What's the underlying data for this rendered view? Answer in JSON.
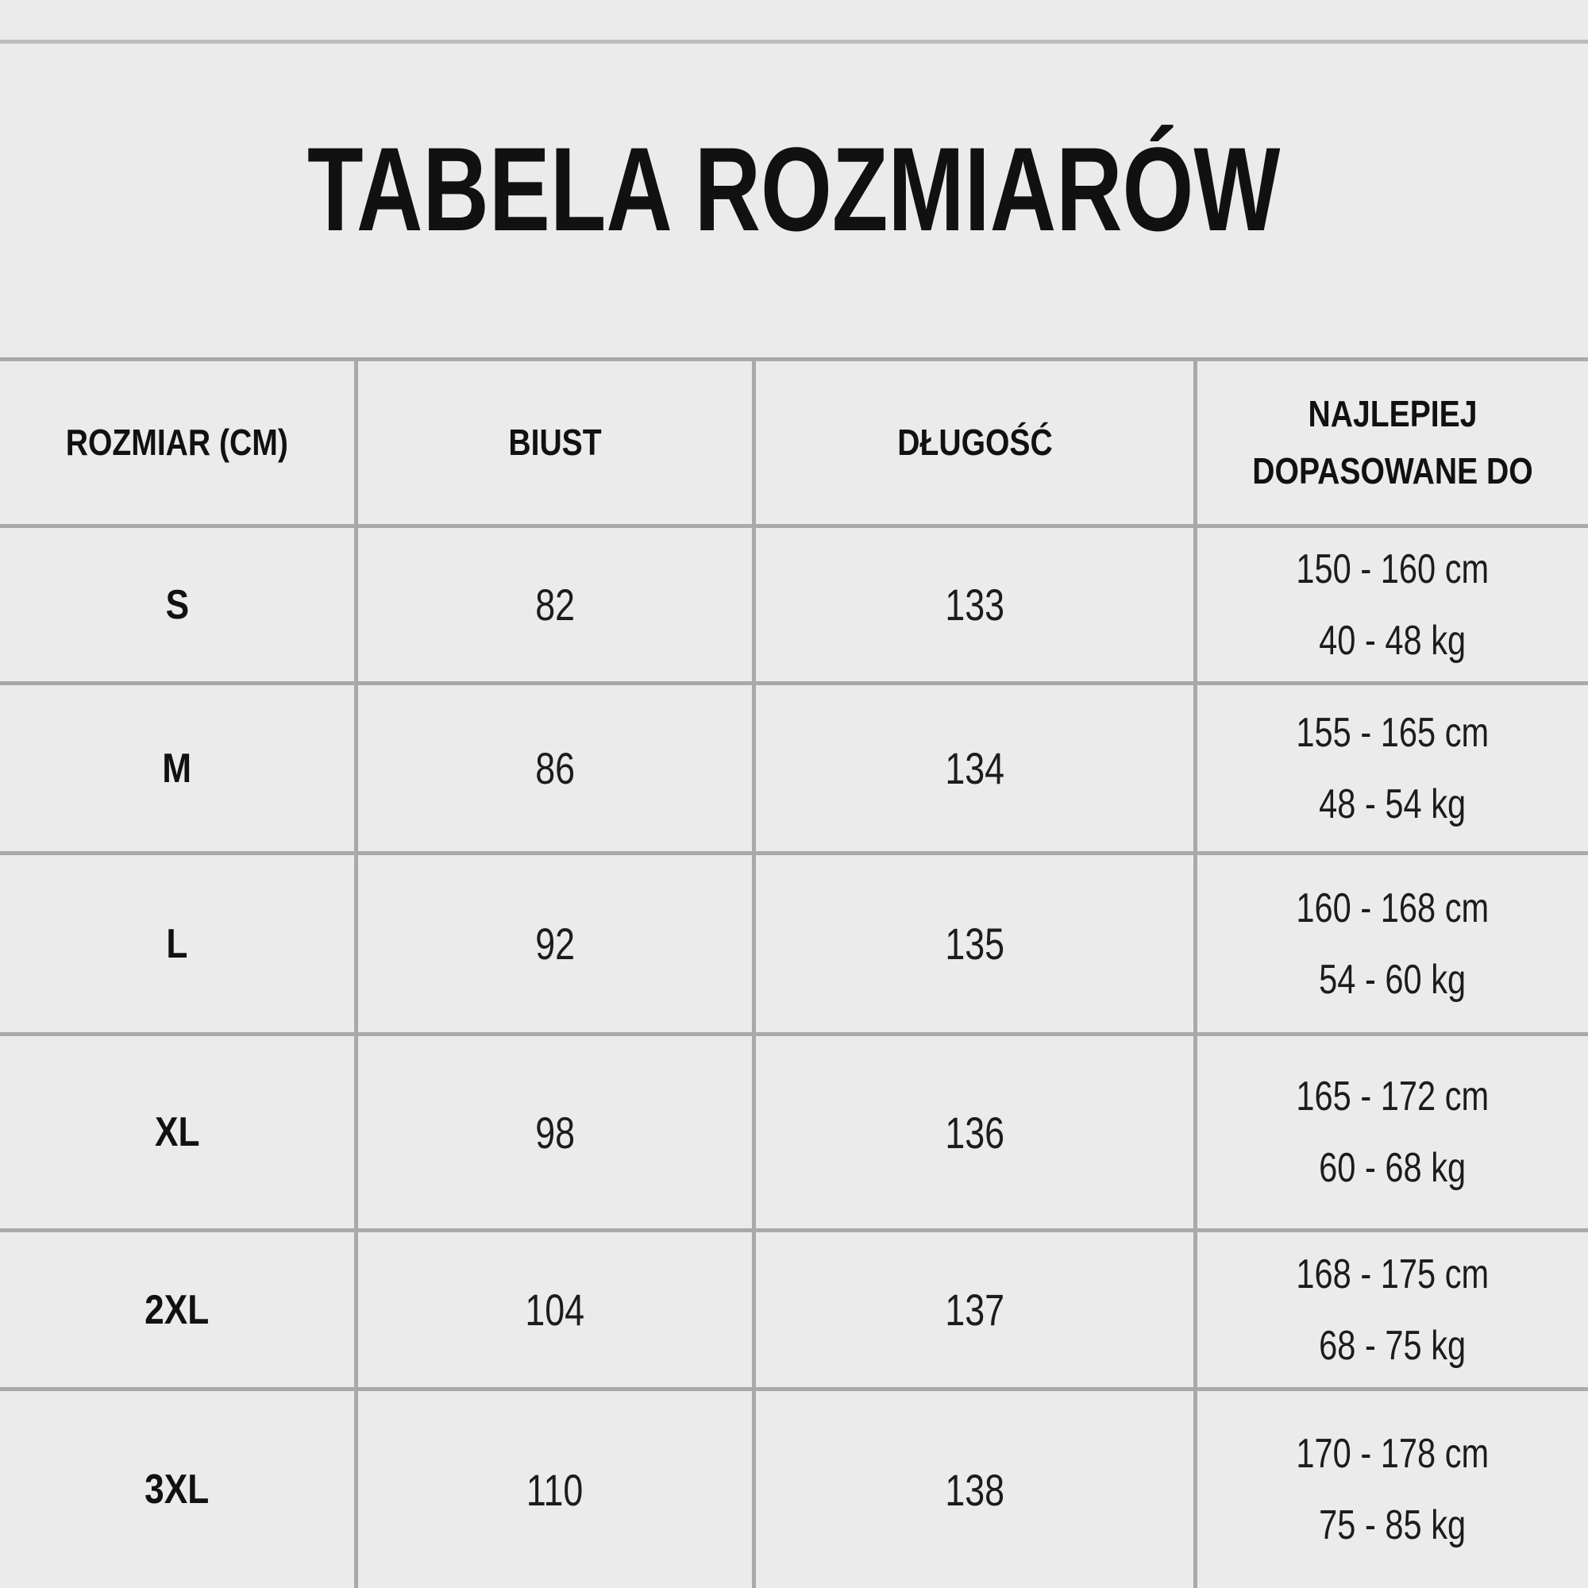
{
  "colors": {
    "background": "#ebebeb",
    "border": "#a9a9a9",
    "divider": "#bcbcbc",
    "text": "#111111"
  },
  "chart_data": {
    "type": "table",
    "title": "TABELA ROZMIARÓW",
    "columns": [
      "ROZMIAR (CM)",
      "BIUST",
      "DŁUGOŚĆ",
      "NAJLEPIEJ DOPASOWANE DO"
    ],
    "rows": [
      {
        "size": "S",
        "bust": "82",
        "length": "133",
        "fit_height": "150 - 160 cm",
        "fit_weight": "40 - 48 kg"
      },
      {
        "size": "M",
        "bust": "86",
        "length": "134",
        "fit_height": "155 - 165 cm",
        "fit_weight": "48 - 54 kg"
      },
      {
        "size": "L",
        "bust": "92",
        "length": "135",
        "fit_height": "160 - 168 cm",
        "fit_weight": "54 - 60 kg"
      },
      {
        "size": "XL",
        "bust": "98",
        "length": "136",
        "fit_height": "165 - 172 cm",
        "fit_weight": "60 - 68 kg"
      },
      {
        "size": "2XL",
        "bust": "104",
        "length": "137",
        "fit_height": "168 - 175 cm",
        "fit_weight": "68 - 75 kg"
      },
      {
        "size": "3XL",
        "bust": "110",
        "length": "138",
        "fit_height": "170 - 178 cm",
        "fit_weight": "75 - 85 kg"
      }
    ]
  }
}
